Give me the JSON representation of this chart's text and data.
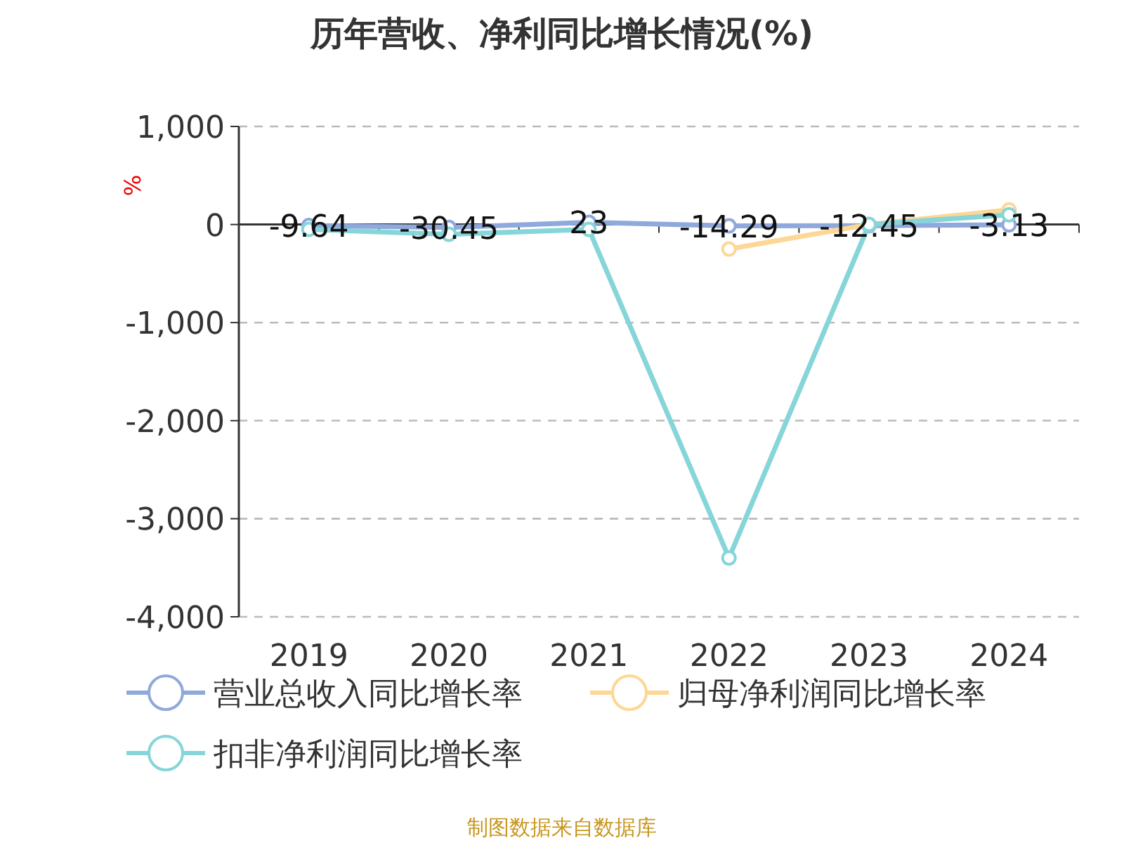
{
  "chart_data": {
    "type": "line",
    "title": "历年营收、净利同比增长情况(%)",
    "ylabel": "%",
    "categories": [
      "2019",
      "2020",
      "2021",
      "2022",
      "2023",
      "2024"
    ],
    "series": [
      {
        "name": "营业总收入同比增长率",
        "color": "#8fa9dc",
        "values": [
          -9.64,
          -30.45,
          23,
          -14.29,
          -12.45,
          -3.13
        ],
        "value_labels": [
          "-9.64",
          "-30.45",
          "23",
          "-14.29",
          "-12.45",
          "-3.13"
        ]
      },
      {
        "name": "归母净利润同比增长率",
        "color": "#fdd795",
        "values": [
          null,
          null,
          null,
          -250,
          0,
          150
        ]
      },
      {
        "name": "扣非净利润同比增长率",
        "color": "#86d5d8",
        "values": [
          -50,
          -100,
          -50,
          -3400,
          0,
          100
        ]
      }
    ],
    "ylim": [
      -4000,
      1000
    ],
    "yticks": [
      {
        "value": 1000,
        "label": "1,000"
      },
      0,
      {
        "value": -1000,
        "label": "-1,000"
      },
      {
        "value": -2000,
        "label": "-2,000"
      },
      {
        "value": -3000,
        "label": "-3,000"
      },
      {
        "value": -4000,
        "label": "-4,000"
      }
    ],
    "grid": "y",
    "legend": "bottom",
    "marker": "circle",
    "line_style": "solid",
    "annotations": [
      "制图数据来自数据库"
    ]
  }
}
